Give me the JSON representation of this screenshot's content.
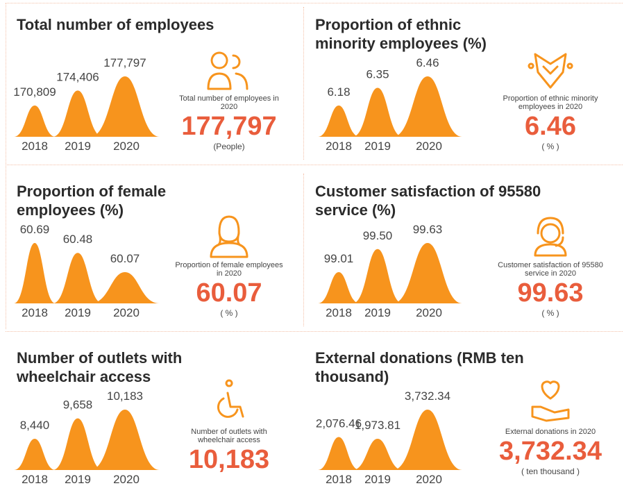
{
  "chart_data": [
    {
      "type": "bar",
      "title": "Total number of employees",
      "categories": [
        "2018",
        "2019",
        "2020"
      ],
      "values": [
        170809,
        174406,
        177797
      ],
      "value_labels": [
        "170,809",
        "174,406",
        "177,797"
      ],
      "color": "#f7941d",
      "highlight": {
        "caption": "Total number of employees in 2020",
        "value": "177,797",
        "unit": "(People)"
      }
    },
    {
      "type": "bar",
      "title": "Proportion of ethnic minority employees (%)",
      "categories": [
        "2018",
        "2019",
        "2020"
      ],
      "values": [
        6.18,
        6.35,
        6.46
      ],
      "color": "#f7941d",
      "highlight": {
        "caption": "Proportion of ethnic minority employees in 2020",
        "value": "6.46",
        "unit": "( % )"
      }
    },
    {
      "type": "bar",
      "title": "Proportion of female employees (%)",
      "categories": [
        "2018",
        "2019",
        "2020"
      ],
      "values": [
        60.69,
        60.48,
        60.07
      ],
      "color": "#f7941d",
      "highlight": {
        "caption": "Proportion of female employees in 2020",
        "value": "60.07",
        "unit": "( % )"
      }
    },
    {
      "type": "bar",
      "title": "Customer satisfaction of 95580 service (%)",
      "categories": [
        "2018",
        "2019",
        "2020"
      ],
      "values": [
        99.01,
        99.5,
        99.63
      ],
      "value_labels": [
        "99.01",
        "99.50",
        "99.63"
      ],
      "color": "#f7941d",
      "highlight": {
        "caption": "Customer satisfaction of 95580 service in 2020",
        "value": "99.63",
        "unit": "( % )"
      }
    },
    {
      "type": "bar",
      "title": "Number of outlets with wheelchair access",
      "categories": [
        "2018",
        "2019",
        "2020"
      ],
      "values": [
        8440,
        9658,
        10183
      ],
      "value_labels": [
        "8,440",
        "9,658",
        "10,183"
      ],
      "color": "#f7941d",
      "highlight": {
        "caption": "Number of outlets with wheelchair access",
        "value": "10,183",
        "unit": ""
      }
    },
    {
      "type": "bar",
      "title": "External donations (RMB ten thousand)",
      "categories": [
        "2018",
        "2019",
        "2020"
      ],
      "values": [
        2076.46,
        1973.81,
        3732.34
      ],
      "value_labels": [
        "2,076.46",
        "1,973.81",
        "3,732.34"
      ],
      "color": "#f7941d",
      "highlight": {
        "caption": "External donations  in 2020",
        "value": "3,732.34",
        "unit": "( ten thousand )"
      }
    }
  ]
}
